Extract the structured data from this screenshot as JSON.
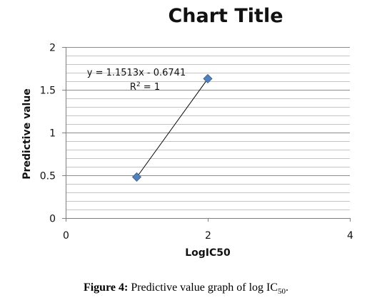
{
  "chart_data": {
    "type": "scatter",
    "title": "Chart Title",
    "xlabel": "LogIC50",
    "ylabel": "Predictive value",
    "xlim": [
      0,
      4
    ],
    "ylim": [
      0,
      2
    ],
    "x_ticks": [
      "0",
      "2",
      "4"
    ],
    "y_ticks": [
      "0",
      "0.5",
      "1",
      "1.5",
      "2"
    ],
    "grid": true,
    "legend": "none",
    "marker": "diamond",
    "marker_color": "#4f81bd",
    "trendline_color": "#000000",
    "series": [
      {
        "x": [
          1,
          2
        ],
        "y": [
          0.48,
          1.63
        ]
      }
    ],
    "trendline": {
      "slope": 1.1513,
      "intercept": -0.6741,
      "equation": "y = 1.1513x - 0.6741",
      "r2_prefix": "R",
      "r2_sup": "2",
      "r2_suffix": " = 1"
    }
  },
  "caption": {
    "label": "Figure 4:",
    "text": " Predictive value graph of log IC",
    "sub": "50",
    "end": "."
  }
}
